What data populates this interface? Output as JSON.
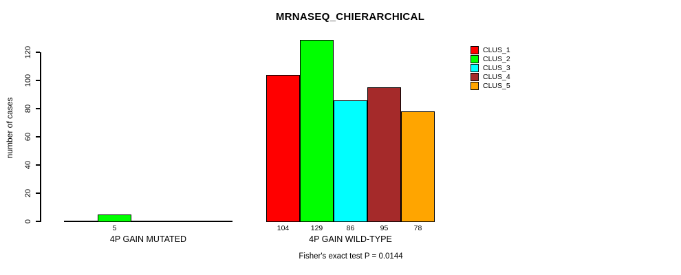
{
  "chart_data": {
    "type": "bar",
    "title": "MRNASEQ_CHIERARCHICAL",
    "ylabel": "number of cases",
    "xlabel": "",
    "ylim": [
      0,
      120
    ],
    "yticks": [
      0,
      20,
      40,
      60,
      80,
      100,
      120
    ],
    "grid": false,
    "series_colors": [
      "#FF0000",
      "#00FF00",
      "#00FFFF",
      "#A52A2A",
      "#FFA500"
    ],
    "legend": {
      "position": "top-right",
      "entries": [
        {
          "label": "CLUS_1",
          "color": "#FF0000"
        },
        {
          "label": "CLUS_2",
          "color": "#00FF00"
        },
        {
          "label": "CLUS_3",
          "color": "#00FFFF"
        },
        {
          "label": "CLUS_4",
          "color": "#A52A2A"
        },
        {
          "label": "CLUS_5",
          "color": "#FFA500"
        }
      ]
    },
    "groups": [
      {
        "label": "4P GAIN MUTATED",
        "values": [
          0,
          5,
          0,
          0,
          0
        ]
      },
      {
        "label": "4P GAIN WILD-TYPE",
        "values": [
          104,
          129,
          86,
          95,
          78
        ]
      }
    ],
    "footnote": "Fisher's exact test P = 0.0144"
  }
}
